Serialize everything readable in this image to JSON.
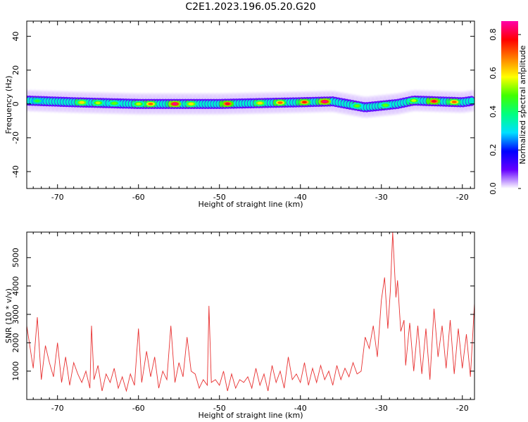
{
  "figure_title": "C2E1.2023.196.05.20.G20",
  "chart_data": [
    {
      "type": "heatmap",
      "title": "C2E1.2023.196.05.20.G20",
      "xlabel": "Height of straight line (km)",
      "ylabel": "Frequency (Hz)",
      "xlim": [
        -73.8,
        -18.5
      ],
      "ylim": [
        -50,
        49
      ],
      "xticks": [
        -70,
        -60,
        -50,
        -40,
        -30,
        -20
      ],
      "yticks": [
        -40,
        -20,
        0,
        20,
        40
      ],
      "colorbar": {
        "label": "Normalized spectral amplitude",
        "range": [
          0,
          0.87
        ],
        "ticks": [
          0.0,
          0.2,
          0.4,
          0.6,
          0.8
        ],
        "colormap": [
          "#ffffff",
          "#6600ff",
          "#0000ff",
          "#00e0ff",
          "#00ff80",
          "#40ff00",
          "#ffff00",
          "#ff8000",
          "#ff0000",
          "#ff00aa"
        ]
      },
      "band": {
        "center_freq_hz": [
          [
            -73.8,
            2
          ],
          [
            -68,
            1
          ],
          [
            -60,
            0
          ],
          [
            -50,
            0
          ],
          [
            -40,
            1
          ],
          [
            -36,
            1.5
          ],
          [
            -32,
            -2
          ],
          [
            -28,
            0
          ],
          [
            -26,
            2
          ],
          [
            -20,
            1
          ],
          [
            -18.5,
            2
          ]
        ],
        "half_width_hz": 3,
        "peaks": [
          {
            "x": -72.5,
            "amplitude": 0.45
          },
          {
            "x": -67,
            "amplitude": 0.6
          },
          {
            "x": -65,
            "amplitude": 0.55
          },
          {
            "x": -63,
            "amplitude": 0.5
          },
          {
            "x": -60,
            "amplitude": 0.55
          },
          {
            "x": -58.5,
            "amplitude": 0.7
          },
          {
            "x": -55.5,
            "amplitude": 0.85
          },
          {
            "x": -53.5,
            "amplitude": 0.6
          },
          {
            "x": -49,
            "amplitude": 0.8
          },
          {
            "x": -45,
            "amplitude": 0.6
          },
          {
            "x": -42.5,
            "amplitude": 0.7
          },
          {
            "x": -39.5,
            "amplitude": 0.75
          },
          {
            "x": -37,
            "amplitude": 0.85
          },
          {
            "x": -33,
            "amplitude": 0.5
          },
          {
            "x": -29.5,
            "amplitude": 0.5
          },
          {
            "x": -26,
            "amplitude": 0.55
          },
          {
            "x": -23.5,
            "amplitude": 0.8
          },
          {
            "x": -21,
            "amplitude": 0.7
          }
        ]
      }
    },
    {
      "type": "line",
      "xlabel": "Height of straight line (km)",
      "ylabel": "SNR (10 * v/v)",
      "xlim": [
        -73.8,
        -18.5
      ],
      "ylim": [
        0,
        5900
      ],
      "xticks": [
        -70,
        -60,
        -50,
        -40,
        -30,
        -20
      ],
      "yticks": [
        1000,
        2000,
        3000,
        4000,
        5000
      ],
      "color": "#e83030",
      "series": [
        {
          "x": [
            -73.8,
            -73,
            -72.5,
            -72,
            -71.5,
            -71,
            -70.5,
            -70,
            -69.5,
            -69,
            -68.5,
            -68,
            -67.5,
            -67,
            -66.5,
            -66,
            -65.8,
            -65.5,
            -65,
            -64.5,
            -64,
            -63.5,
            -63,
            -62.5,
            -62,
            -61.5,
            -61,
            -60.5,
            -60,
            -59.6,
            -59,
            -58.5,
            -58,
            -57.5,
            -57,
            -56.5,
            -56,
            -55.5,
            -55,
            -54.5,
            -54,
            -53.5,
            -53,
            -52.5,
            -52,
            -51.5,
            -51.3,
            -51,
            -50.5,
            -50,
            -49.5,
            -49,
            -48.5,
            -48,
            -47.5,
            -47,
            -46.5,
            -46,
            -45.5,
            -45,
            -44.5,
            -44,
            -43.5,
            -43,
            -42.5,
            -42,
            -41.5,
            -41,
            -40.5,
            -40,
            -39.5,
            -39,
            -38.5,
            -38,
            -37.5,
            -37,
            -36.5,
            -36,
            -35.5,
            -35,
            -34.5,
            -34,
            -33.5,
            -33,
            -32.5,
            -32,
            -31.5,
            -31,
            -30.5,
            -30,
            -29.6,
            -29.2,
            -28.9,
            -28.6,
            -28.2,
            -28,
            -27.6,
            -27.2,
            -27,
            -26.5,
            -26,
            -25.5,
            -25,
            -24.5,
            -24,
            -23.5,
            -23,
            -22.5,
            -22,
            -21.5,
            -21,
            -20.5,
            -20,
            -19.5,
            -19,
            -18.5
          ],
          "values": [
            2600,
            1100,
            2900,
            700,
            1900,
            1300,
            800,
            2000,
            600,
            1500,
            500,
            1300,
            900,
            600,
            1000,
            400,
            2600,
            700,
            1200,
            300,
            900,
            600,
            1100,
            400,
            800,
            300,
            900,
            500,
            2500,
            600,
            1700,
            800,
            1500,
            400,
            1000,
            700,
            2600,
            600,
            1300,
            800,
            2200,
            1000,
            900,
            400,
            700,
            500,
            3300,
            600,
            700,
            500,
            1000,
            300,
            900,
            400,
            700,
            600,
            800,
            400,
            1100,
            500,
            900,
            300,
            1200,
            600,
            1000,
            400,
            1500,
            700,
            900,
            600,
            1300,
            500,
            1100,
            600,
            1200,
            700,
            1000,
            500,
            1200,
            700,
            1100,
            800,
            1300,
            900,
            1000,
            2200,
            1800,
            2600,
            1500,
            3500,
            4300,
            2500,
            3800,
            5900,
            3600,
            4200,
            2400,
            2800,
            1200,
            2700,
            1000,
            2600,
            900,
            2500,
            700,
            3200,
            1500,
            2600,
            1100,
            2800,
            900,
            2500,
            1100,
            2300,
            800,
            3400
          ]
        }
      ]
    }
  ]
}
